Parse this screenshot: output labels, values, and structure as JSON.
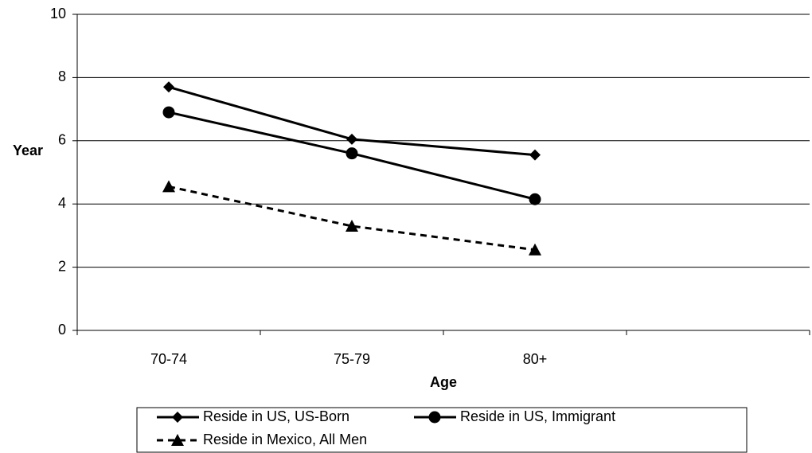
{
  "chart_data": {
    "type": "line",
    "x_label": "Age",
    "y_label": "Year",
    "categories": [
      "70-74",
      "75-79",
      "80+",
      null
    ],
    "series": [
      {
        "name": "Reside in US, US-Born",
        "color": "#000000",
        "marker": "diamond",
        "dash": false,
        "values": [
          7.7,
          6.05,
          5.55,
          null
        ]
      },
      {
        "name": "Reside in US, Immigrant",
        "color": "#000000",
        "marker": "circle",
        "dash": false,
        "values": [
          6.9,
          5.6,
          4.15,
          null
        ]
      },
      {
        "name": "Reside in Mexico, All Men",
        "color": "#000000",
        "marker": "triangle",
        "dash": true,
        "values": [
          4.55,
          3.3,
          2.55,
          null
        ]
      }
    ],
    "ylim": [
      0,
      10
    ],
    "yticks": [
      0,
      2,
      4,
      6,
      8,
      10
    ],
    "grid": true,
    "legend": "bottom"
  }
}
